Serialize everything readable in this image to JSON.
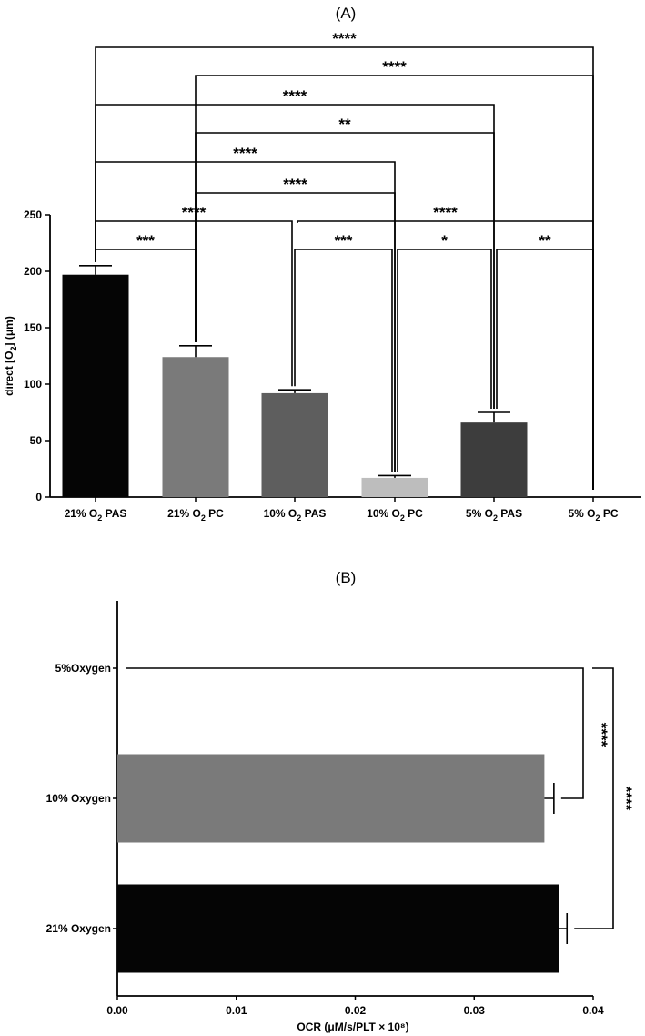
{
  "chart_data": [
    {
      "panel": "(A)",
      "type": "bar",
      "title": "(A)",
      "ylabel": "direct [O2] (μm)",
      "ylabel_parts": [
        "direct [O",
        "2",
        "] (μm)"
      ],
      "ylim": [
        0,
        250
      ],
      "yticks": [
        0,
        50,
        100,
        150,
        200,
        250
      ],
      "ytick_labels": [
        "0",
        "50",
        "100",
        "150",
        "200",
        "250"
      ],
      "categories": [
        {
          "prefix": "21% O",
          "sub": "2",
          "suffix": " PAS"
        },
        {
          "prefix": "21% O",
          "sub": "2",
          "suffix": " PC"
        },
        {
          "prefix": "10% O",
          "sub": "2",
          "suffix": " PAS"
        },
        {
          "prefix": "10% O",
          "sub": "2",
          "suffix": " PC"
        },
        {
          "prefix": "5% O",
          "sub": "2",
          "suffix": " PAS"
        },
        {
          "prefix": "5% O",
          "sub": "2",
          "suffix": " PC"
        }
      ],
      "values": [
        197,
        124,
        92,
        17,
        66,
        0
      ],
      "errors": [
        8,
        10,
        3,
        2,
        9,
        0
      ],
      "colors": [
        "#050505",
        "#7a7a7a",
        "#5e5e5e",
        "#bdbdbd",
        "#3d3d3d",
        "#ffffff"
      ],
      "comparisons": [
        {
          "a": 0,
          "b": 1,
          "label": "***"
        },
        {
          "a": 2,
          "b": 3,
          "label": "***"
        },
        {
          "a": 3,
          "b": 4,
          "label": "*"
        },
        {
          "a": 4,
          "b": 5,
          "label": "**"
        },
        {
          "a": 0,
          "b": 2,
          "label": "****"
        },
        {
          "a": 2,
          "b": 5,
          "label": "****"
        },
        {
          "a": 1,
          "b": 3,
          "label": "****"
        },
        {
          "a": 0,
          "b": 3,
          "label": "****"
        },
        {
          "a": 1,
          "b": 4,
          "label": "**"
        },
        {
          "a": 0,
          "b": 4,
          "label": "****"
        },
        {
          "a": 1,
          "b": 5,
          "label": "****"
        },
        {
          "a": 0,
          "b": 5,
          "label": "****"
        }
      ]
    },
    {
      "panel": "(B)",
      "type": "bar",
      "orientation": "horizontal",
      "title": "(B)",
      "xlabel": "OCR (μM/s/PLT × 10⁸)",
      "xlim": [
        0,
        0.04
      ],
      "xticks": [
        0,
        0.01,
        0.02,
        0.03,
        0.04
      ],
      "xtick_labels": [
        "0.00",
        "0.01",
        "0.02",
        "0.03",
        "0.04"
      ],
      "categories": [
        "5%Oxygen",
        "10% Oxygen",
        "21% Oxygen"
      ],
      "values": [
        0,
        0.0359,
        0.0371
      ],
      "errors": [
        0,
        0.0008,
        0.0007
      ],
      "colors": [
        "#ffffff",
        "#7a7a7a",
        "#050505"
      ],
      "comparisons": [
        {
          "a": 0,
          "b": 1,
          "label": "****"
        },
        {
          "a": 0,
          "b": 2,
          "label": "****"
        }
      ]
    }
  ]
}
